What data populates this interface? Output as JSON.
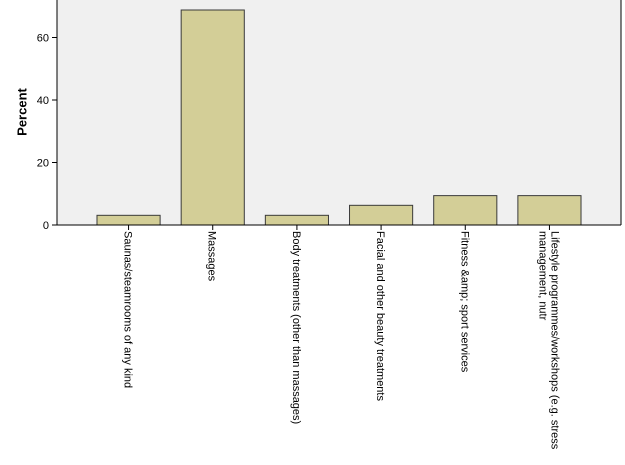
{
  "chart_data": {
    "type": "bar",
    "title": "",
    "xlabel": "",
    "ylabel": "Percent",
    "ylim": [
      0,
      72
    ],
    "yticks": [
      0,
      20,
      40,
      60
    ],
    "grid": false,
    "categories": [
      [
        "Saunas/steamrooms of any kind"
      ],
      [
        "Massages"
      ],
      [
        "Body treatments (other than massages)"
      ],
      [
        "Facial and other beauty treatments"
      ],
      [
        "Fitness &amp; sport services"
      ],
      [
        "Lifestyle programmes/workshops (e.g. stress",
        "management, nutr"
      ]
    ],
    "values": [
      3.1,
      68.8,
      3.1,
      6.3,
      9.4,
      9.4
    ],
    "colors": {
      "plot_background": "#f0f0f0",
      "bar_fill": "#d3ce97",
      "bar_stroke": "#3a3a3a",
      "axis": "#000000"
    }
  }
}
